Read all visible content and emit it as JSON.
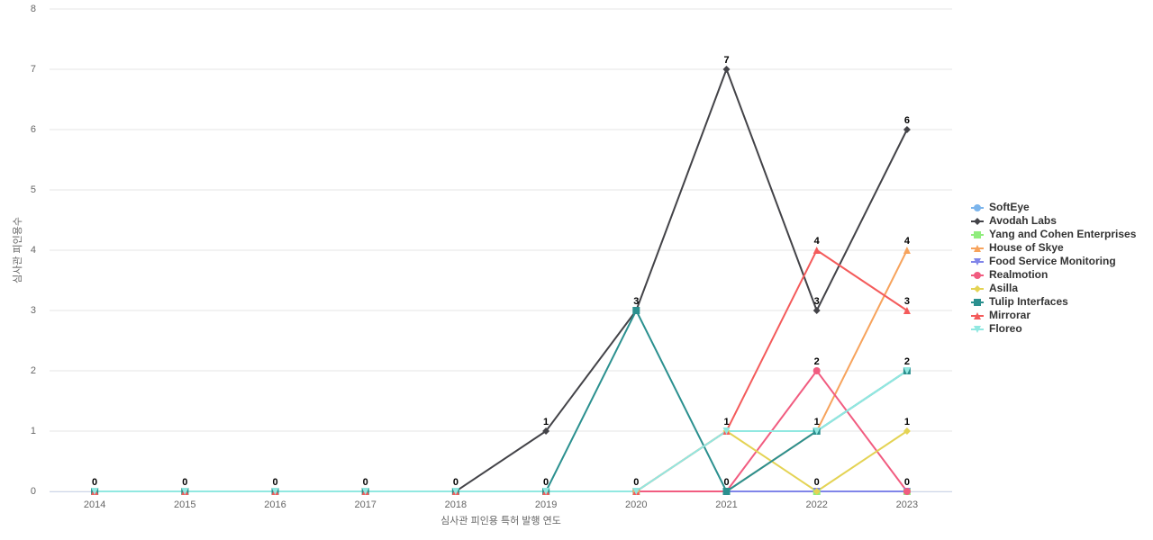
{
  "chart_data": {
    "type": "line",
    "x_label": "심사관 피인용 특허 발행 연도",
    "y_label": "심사관 피인용수",
    "categories": [
      "2014",
      "2015",
      "2016",
      "2017",
      "2018",
      "2019",
      "2020",
      "2021",
      "2022",
      "2023"
    ],
    "ylim": [
      0,
      8
    ],
    "yticks": [
      0,
      1,
      2,
      3,
      4,
      5,
      6,
      7,
      8
    ],
    "grid": true,
    "legend": "right",
    "series": [
      {
        "name": "SoftEye",
        "color": "#7cb5ec",
        "symbol": "circle",
        "values": [
          0,
          0,
          0,
          0,
          0,
          0,
          0,
          0,
          0,
          0
        ]
      },
      {
        "name": "Avodah Labs",
        "color": "#434348",
        "symbol": "diamond",
        "values": [
          0,
          0,
          0,
          0,
          0,
          1,
          3,
          7,
          3,
          6
        ]
      },
      {
        "name": "Yang and Cohen Enterprises",
        "color": "#90ed7d",
        "symbol": "square",
        "values": [
          0,
          0,
          0,
          0,
          0,
          0,
          0,
          0,
          0,
          0
        ]
      },
      {
        "name": "House of Skye",
        "color": "#f7a35c",
        "symbol": "triangle",
        "values": [
          0,
          0,
          0,
          0,
          0,
          0,
          0,
          0,
          1,
          4
        ]
      },
      {
        "name": "Food Service Monitoring",
        "color": "#8085e9",
        "symbol": "triangle-down",
        "values": [
          0,
          0,
          0,
          0,
          0,
          0,
          0,
          0,
          0,
          0
        ]
      },
      {
        "name": "Realmotion",
        "color": "#f15c80",
        "symbol": "circle",
        "values": [
          0,
          0,
          0,
          0,
          0,
          0,
          0,
          0,
          2,
          0
        ]
      },
      {
        "name": "Asilla",
        "color": "#e4d354",
        "symbol": "diamond",
        "values": [
          0,
          0,
          0,
          0,
          0,
          0,
          0,
          1,
          0,
          1
        ]
      },
      {
        "name": "Tulip Interfaces",
        "color": "#2b908f",
        "symbol": "square",
        "values": [
          0,
          0,
          0,
          0,
          0,
          0,
          3,
          0,
          1,
          2
        ]
      },
      {
        "name": "Mirrorar",
        "color": "#f45b5b",
        "symbol": "triangle",
        "values": [
          0,
          0,
          0,
          0,
          0,
          0,
          0,
          1,
          4,
          3
        ]
      },
      {
        "name": "Floreo",
        "color": "#91e8e1",
        "symbol": "triangle-down",
        "values": [
          0,
          0,
          0,
          0,
          0,
          0,
          0,
          1,
          1,
          2
        ]
      }
    ]
  }
}
